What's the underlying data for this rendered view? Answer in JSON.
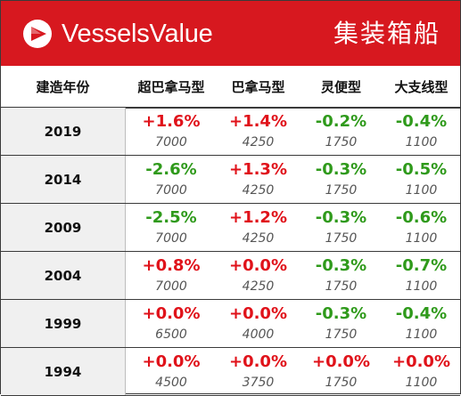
{
  "header": {
    "brand": "VesselsValue",
    "title": "集装箱船",
    "accent": "#d7181f",
    "logo_icon": "vesselsvalue-triangle-logo-icon"
  },
  "columns": [
    "建造年份",
    "超巴拿马型",
    "巴拿马型",
    "灵便型",
    "大支线型"
  ],
  "colors": {
    "positive": "#e0121a",
    "negative": "#2f9a1b"
  },
  "rows": [
    {
      "year": "2019",
      "cells": [
        {
          "pct": "+1.6%",
          "base": "7000"
        },
        {
          "pct": "+1.4%",
          "base": "4250"
        },
        {
          "pct": "-0.2%",
          "base": "1750"
        },
        {
          "pct": "-0.4%",
          "base": "1100"
        }
      ]
    },
    {
      "year": "2014",
      "cells": [
        {
          "pct": "-2.6%",
          "base": "7000"
        },
        {
          "pct": "+1.3%",
          "base": "4250"
        },
        {
          "pct": "-0.3%",
          "base": "1750"
        },
        {
          "pct": "-0.5%",
          "base": "1100"
        }
      ]
    },
    {
      "year": "2009",
      "cells": [
        {
          "pct": "-2.5%",
          "base": "7000"
        },
        {
          "pct": "+1.2%",
          "base": "4250"
        },
        {
          "pct": "-0.3%",
          "base": "1750"
        },
        {
          "pct": "-0.6%",
          "base": "1100"
        }
      ]
    },
    {
      "year": "2004",
      "cells": [
        {
          "pct": "+0.8%",
          "base": "7000"
        },
        {
          "pct": "+0.0%",
          "base": "4250"
        },
        {
          "pct": "-0.3%",
          "base": "1750"
        },
        {
          "pct": "-0.7%",
          "base": "1100"
        }
      ]
    },
    {
      "year": "1999",
      "cells": [
        {
          "pct": "+0.0%",
          "base": "6500"
        },
        {
          "pct": "+0.0%",
          "base": "4000"
        },
        {
          "pct": "-0.3%",
          "base": "1750"
        },
        {
          "pct": "-0.4%",
          "base": "1100"
        }
      ]
    },
    {
      "year": "1994",
      "cells": [
        {
          "pct": "+0.0%",
          "base": "4500"
        },
        {
          "pct": "+0.0%",
          "base": "3750"
        },
        {
          "pct": "+0.0%",
          "base": "1750"
        },
        {
          "pct": "+0.0%",
          "base": "1100"
        }
      ]
    }
  ]
}
